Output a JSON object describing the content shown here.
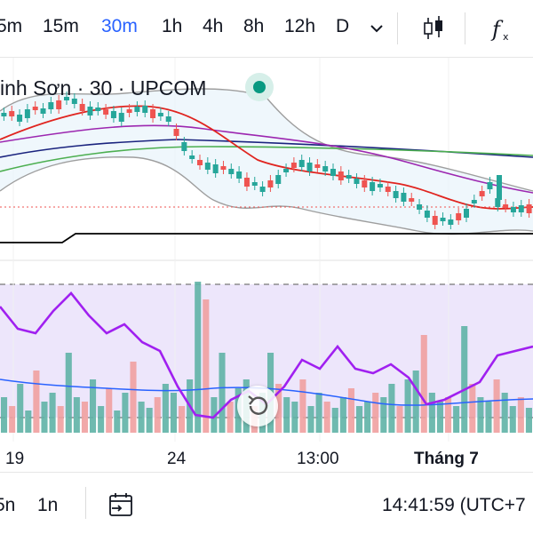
{
  "toolbar": {
    "timeframes": [
      {
        "label": "5m",
        "active": false
      },
      {
        "label": "15m",
        "active": false
      },
      {
        "label": "30m",
        "active": true
      },
      {
        "label": "1h",
        "active": false
      },
      {
        "label": "4h",
        "active": false
      },
      {
        "label": "8h",
        "active": false
      },
      {
        "label": "12h",
        "active": false
      },
      {
        "label": "D",
        "active": false
      }
    ],
    "dropdown_icon": "chevron-down-icon",
    "chart_type_icon": "candlestick-icon",
    "indicators_icon": "function-fx-icon"
  },
  "legend": {
    "symbol_text": "inh Sơn · 30 · UPCOM",
    "status_color": "#089981"
  },
  "x_axis": {
    "labels": [
      {
        "text": "19",
        "bold": false
      },
      {
        "text": "24",
        "bold": false
      },
      {
        "text": "13:00",
        "bold": false
      },
      {
        "text": "Tháng 7",
        "bold": true
      }
    ]
  },
  "bottom_bar": {
    "ranges": [
      "5n",
      "1n"
    ],
    "goto_date_icon": "calendar-goto-icon",
    "clock": "14:41:59 (UTC+7"
  },
  "colors": {
    "up": "#26a69a",
    "down": "#ef5350",
    "accent": "#2962ff",
    "ma_red": "#e0241f",
    "ma_purple": "#9c27b0",
    "ma_navy": "#1a237e",
    "ma_green": "#4caf50",
    "bollinger": "#9e9e9e",
    "rsi_line": "#a020f0",
    "volume_ma": "#2962ff"
  },
  "chart_data": {
    "type": "candlestick",
    "x_categories": [
      "19",
      "24",
      "13:00",
      "Tháng 7"
    ],
    "grid": true,
    "price_panel": {
      "series": [
        {
          "indicator": "moving-average",
          "color": "red"
        },
        {
          "indicator": "moving-average",
          "color": "purple"
        },
        {
          "indicator": "moving-average",
          "color": "navy"
        },
        {
          "indicator": "moving-average",
          "color": "green"
        },
        {
          "indicator": "bollinger-bands",
          "color": "gray"
        }
      ]
    },
    "lower_panel": {
      "content": [
        "volume-bars",
        "oscillator-line",
        "volume-moving-average"
      ]
    }
  }
}
